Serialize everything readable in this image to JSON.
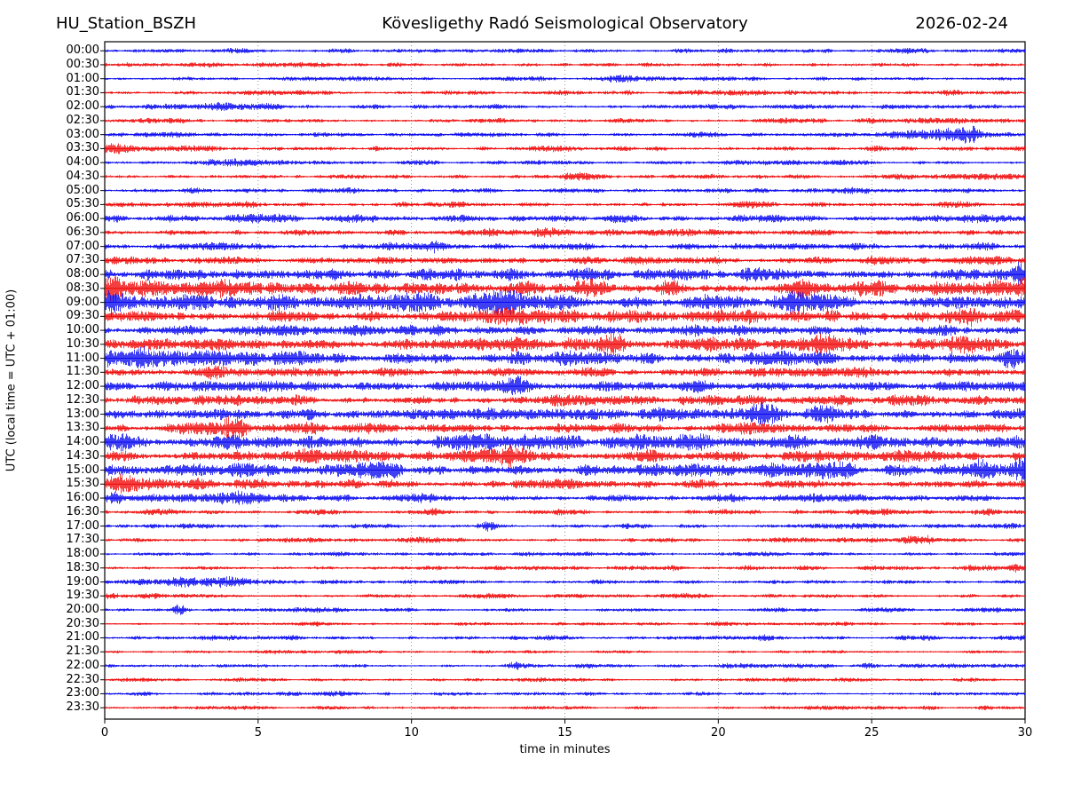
{
  "header": {
    "station": "HU_Station_BSZH",
    "observatory": "Kövesligethy Radó Seismological Observatory",
    "date": "2026-02-24"
  },
  "axes": {
    "xlabel": "time in minutes",
    "ylabel": "UTC (local time = UTC + 01:00)",
    "xticks": [
      0,
      5,
      10,
      15,
      20,
      25,
      30
    ],
    "xlim": [
      0,
      30
    ],
    "grid_minutes": [
      5,
      10,
      15,
      20,
      25
    ],
    "grid_style": "dotted"
  },
  "colors": {
    "trace_blue": "#0000F0",
    "trace_red": "#F00000",
    "frame": "#000000",
    "grid": "#666666"
  },
  "chart_data": {
    "type": "line",
    "subtype": "helicorder-seismogram",
    "title": "Kövesligethy Radó Seismological Observatory",
    "xlabel": "time in minutes",
    "ylabel": "UTC (local time = UTC + 01:00)",
    "xlim": [
      0,
      30
    ],
    "row_duration_minutes": 30,
    "legend": "alternating blue/red traces per 30-minute segment",
    "rows": [
      {
        "label": "00:00",
        "color": "blue",
        "amp": 1.6,
        "events": []
      },
      {
        "label": "00:30",
        "color": "red",
        "amp": 1.6,
        "events": [
          {
            "t": 9.5,
            "d": 0.5,
            "a": 1.5
          }
        ]
      },
      {
        "label": "01:00",
        "color": "blue",
        "amp": 1.4,
        "events": [
          {
            "t": 16.6,
            "d": 0.8,
            "a": 2.6
          }
        ]
      },
      {
        "label": "01:30",
        "color": "red",
        "amp": 1.6,
        "events": []
      },
      {
        "label": "02:00",
        "color": "blue",
        "amp": 1.8,
        "events": [
          {
            "t": 3.5,
            "d": 1.5,
            "a": 1.2
          }
        ]
      },
      {
        "label": "02:30",
        "color": "red",
        "amp": 1.6,
        "events": []
      },
      {
        "label": "03:00",
        "color": "blue",
        "amp": 1.8,
        "events": [
          {
            "t": 26.3,
            "d": 1.8,
            "a": 3.0
          },
          {
            "t": 28.0,
            "d": 0.9,
            "a": 6.0
          }
        ]
      },
      {
        "label": "03:30",
        "color": "red",
        "amp": 1.8,
        "events": [
          {
            "t": 0.3,
            "d": 0.8,
            "a": 3.2
          }
        ]
      },
      {
        "label": "04:00",
        "color": "blue",
        "amp": 1.5,
        "events": [
          {
            "t": 3.9,
            "d": 1.6,
            "a": 2.6
          }
        ]
      },
      {
        "label": "04:30",
        "color": "red",
        "amp": 1.7,
        "events": [
          {
            "t": 15.2,
            "d": 0.6,
            "a": 2.0
          }
        ]
      },
      {
        "label": "05:00",
        "color": "blue",
        "amp": 1.8,
        "events": [
          {
            "t": 2.9,
            "d": 0.6,
            "a": 1.6
          },
          {
            "t": 15.0,
            "d": 0.6,
            "a": 1.6
          }
        ]
      },
      {
        "label": "05:30",
        "color": "red",
        "amp": 1.8,
        "events": [
          {
            "t": 21.0,
            "d": 0.5,
            "a": 1.8
          }
        ]
      },
      {
        "label": "06:00",
        "color": "blue",
        "amp": 2.4,
        "events": []
      },
      {
        "label": "06:30",
        "color": "red",
        "amp": 2.0,
        "events": [
          {
            "t": 12.4,
            "d": 0.8,
            "a": 2.4
          },
          {
            "t": 14.5,
            "d": 0.7,
            "a": 4.0
          }
        ]
      },
      {
        "label": "07:00",
        "color": "blue",
        "amp": 2.2,
        "events": [
          {
            "t": 9.5,
            "d": 0.7,
            "a": 2.2
          },
          {
            "t": 10.8,
            "d": 0.7,
            "a": 3.0
          },
          {
            "t": 28.7,
            "d": 0.8,
            "a": 2.0
          }
        ]
      },
      {
        "label": "07:30",
        "color": "red",
        "amp": 2.4,
        "events": [
          {
            "t": 19.8,
            "d": 0.8,
            "a": 2.6
          }
        ]
      },
      {
        "label": "08:00",
        "color": "blue",
        "amp": 4.2,
        "events": [
          {
            "t": 29.9,
            "d": 0.5,
            "a": 8.0
          }
        ]
      },
      {
        "label": "08:30",
        "color": "red",
        "amp": 4.8,
        "events": [
          {
            "t": 0.2,
            "d": 0.5,
            "a": 7.0
          },
          {
            "t": 16.0,
            "d": 0.8,
            "a": 5.0
          },
          {
            "t": 18.4,
            "d": 0.6,
            "a": 5.0
          },
          {
            "t": 29.9,
            "d": 0.4,
            "a": 6.0
          }
        ]
      },
      {
        "label": "09:00",
        "color": "blue",
        "amp": 5.0,
        "events": [
          {
            "t": 0.2,
            "d": 0.5,
            "a": 9.0
          },
          {
            "t": 12.8,
            "d": 1.4,
            "a": 6.5
          },
          {
            "t": 22.5,
            "d": 0.8,
            "a": 4.5
          }
        ]
      },
      {
        "label": "09:30",
        "color": "red",
        "amp": 4.6,
        "events": [
          {
            "t": 13.0,
            "d": 1.4,
            "a": 5.0
          },
          {
            "t": 28.0,
            "d": 0.9,
            "a": 5.0
          }
        ]
      },
      {
        "label": "10:00",
        "color": "blue",
        "amp": 3.8,
        "events": []
      },
      {
        "label": "10:30",
        "color": "red",
        "amp": 4.4,
        "events": [
          {
            "t": 16.6,
            "d": 0.8,
            "a": 5.0
          },
          {
            "t": 23.7,
            "d": 1.1,
            "a": 6.5
          },
          {
            "t": 28.2,
            "d": 0.8,
            "a": 4.0
          }
        ]
      },
      {
        "label": "11:00",
        "color": "blue",
        "amp": 4.6,
        "events": [
          {
            "t": 1.0,
            "d": 1.8,
            "a": 6.0
          },
          {
            "t": 29.6,
            "d": 0.5,
            "a": 6.0
          }
        ]
      },
      {
        "label": "11:30",
        "color": "red",
        "amp": 2.8,
        "events": [
          {
            "t": 3.6,
            "d": 0.6,
            "a": 4.5
          }
        ]
      },
      {
        "label": "12:00",
        "color": "blue",
        "amp": 3.2,
        "events": [
          {
            "t": 13.5,
            "d": 0.8,
            "a": 4.0
          },
          {
            "t": 19.5,
            "d": 0.8,
            "a": 3.5
          }
        ]
      },
      {
        "label": "12:30",
        "color": "red",
        "amp": 3.4,
        "events": []
      },
      {
        "label": "13:00",
        "color": "blue",
        "amp": 3.8,
        "events": [
          {
            "t": 21.5,
            "d": 1.0,
            "a": 5.0
          },
          {
            "t": 23.4,
            "d": 0.8,
            "a": 4.0
          }
        ]
      },
      {
        "label": "13:30",
        "color": "red",
        "amp": 3.4,
        "events": [
          {
            "t": 4.3,
            "d": 0.9,
            "a": 5.0
          }
        ]
      },
      {
        "label": "14:00",
        "color": "blue",
        "amp": 4.4,
        "events": [
          {
            "t": 0.5,
            "d": 0.8,
            "a": 4.0
          },
          {
            "t": 13.8,
            "d": 0.8,
            "a": 4.0
          }
        ]
      },
      {
        "label": "14:30",
        "color": "red",
        "amp": 3.8,
        "events": [
          {
            "t": 12.0,
            "d": 1.5,
            "a": 4.5
          },
          {
            "t": 13.3,
            "d": 0.8,
            "a": 8.0
          }
        ]
      },
      {
        "label": "15:00",
        "color": "blue",
        "amp": 4.4,
        "events": [
          {
            "t": 24.0,
            "d": 0.8,
            "a": 4.5
          },
          {
            "t": 28.6,
            "d": 0.7,
            "a": 5.0
          },
          {
            "t": 29.8,
            "d": 0.4,
            "a": 6.0
          }
        ]
      },
      {
        "label": "15:30",
        "color": "red",
        "amp": 3.2,
        "events": [
          {
            "t": 0.8,
            "d": 1.6,
            "a": 4.0
          }
        ]
      },
      {
        "label": "16:00",
        "color": "blue",
        "amp": 2.6,
        "events": [
          {
            "t": 0.3,
            "d": 0.4,
            "a": 4.5
          },
          {
            "t": 4.3,
            "d": 0.7,
            "a": 3.0
          }
        ]
      },
      {
        "label": "16:30",
        "color": "red",
        "amp": 1.9,
        "events": [
          {
            "t": 10.5,
            "d": 0.6,
            "a": 1.8
          }
        ]
      },
      {
        "label": "17:00",
        "color": "blue",
        "amp": 1.7,
        "events": [
          {
            "t": 12.5,
            "d": 0.6,
            "a": 3.2
          }
        ]
      },
      {
        "label": "17:30",
        "color": "red",
        "amp": 1.7,
        "events": [
          {
            "t": 26.6,
            "d": 0.8,
            "a": 3.0
          }
        ]
      },
      {
        "label": "18:00",
        "color": "blue",
        "amp": 1.5,
        "events": []
      },
      {
        "label": "18:30",
        "color": "red",
        "amp": 1.7,
        "events": [
          {
            "t": 29.6,
            "d": 0.4,
            "a": 2.8
          }
        ]
      },
      {
        "label": "19:00",
        "color": "blue",
        "amp": 1.7,
        "events": [
          {
            "t": 3.2,
            "d": 2.4,
            "a": 3.2
          }
        ]
      },
      {
        "label": "19:30",
        "color": "red",
        "amp": 1.5,
        "events": [
          {
            "t": 0.3,
            "d": 0.5,
            "a": 2.0
          }
        ]
      },
      {
        "label": "20:00",
        "color": "blue",
        "amp": 1.5,
        "events": [
          {
            "t": 2.45,
            "d": 0.4,
            "a": 4.0
          }
        ]
      },
      {
        "label": "20:30",
        "color": "red",
        "amp": 1.3,
        "events": []
      },
      {
        "label": "21:00",
        "color": "blue",
        "amp": 1.5,
        "events": [
          {
            "t": 21.5,
            "d": 0.5,
            "a": 1.8
          }
        ]
      },
      {
        "label": "21:30",
        "color": "red",
        "amp": 1.3,
        "events": []
      },
      {
        "label": "22:00",
        "color": "blue",
        "amp": 1.4,
        "events": [
          {
            "t": 13.4,
            "d": 0.5,
            "a": 2.6
          },
          {
            "t": 24.8,
            "d": 0.4,
            "a": 1.8
          }
        ]
      },
      {
        "label": "22:30",
        "color": "red",
        "amp": 1.3,
        "events": []
      },
      {
        "label": "23:00",
        "color": "blue",
        "amp": 1.4,
        "events": []
      },
      {
        "label": "23:30",
        "color": "red",
        "amp": 1.2,
        "events": [
          {
            "t": 28.7,
            "d": 0.4,
            "a": 1.8
          }
        ]
      }
    ]
  }
}
